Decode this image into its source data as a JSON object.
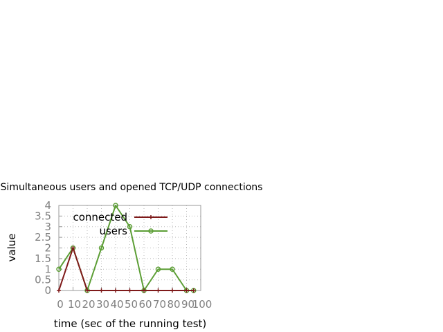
{
  "chart_data": {
    "type": "line",
    "title": "Simultaneous users and opened TCP/UDP connections",
    "xlabel": "time (sec of the running test)",
    "ylabel": "value",
    "xlim": [
      0,
      100
    ],
    "ylim": [
      0,
      4
    ],
    "xticks": [
      "0",
      "10",
      "20",
      "30",
      "40",
      "50",
      "60",
      "70",
      "80",
      "90",
      "100"
    ],
    "yticks": [
      "0",
      "0.5",
      "1",
      "1.5",
      "2",
      "2.5",
      "3",
      "3.5",
      "4"
    ],
    "grid": true,
    "legend_position": "top-right",
    "series": [
      {
        "name": "connected",
        "color": "#7f1a1a",
        "marker": "plus",
        "x": [
          0,
          10,
          20,
          30,
          40,
          50,
          60,
          70,
          80,
          90,
          95
        ],
        "y": [
          0,
          2,
          0,
          0,
          0,
          0,
          0,
          0,
          0,
          0,
          0
        ]
      },
      {
        "name": "users",
        "color": "#5c9e35",
        "marker": "circle",
        "x": [
          0,
          10,
          20,
          30,
          40,
          50,
          60,
          70,
          80,
          90,
          95
        ],
        "y": [
          1,
          2,
          0,
          2,
          4,
          3,
          0,
          1,
          1,
          0,
          0
        ]
      }
    ]
  }
}
